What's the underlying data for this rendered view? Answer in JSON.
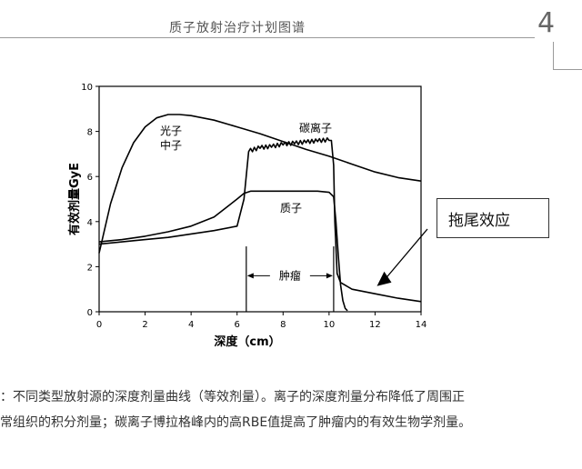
{
  "header": {
    "title": "质子放射治疗计划图谱",
    "page_number": "4"
  },
  "annotation_box": {
    "label": "拖尾效应"
  },
  "caption": {
    "line1": "：不同类型放射源的深度剂量曲线（等效剂量）。离子的深度剂量分布降低了周围正",
    "line2": "常组织的积分剂量；碳离子博拉格峰内的高RBE值提高了肿瘤内的有效生物学剂量。"
  },
  "chart_data": {
    "type": "line",
    "title": "",
    "xlabel": "深度（cm）",
    "ylabel": "有效剂量GyE",
    "xlim": [
      0,
      14
    ],
    "ylim": [
      0,
      10
    ],
    "xticks": [
      "0",
      "2",
      "4",
      "6",
      "8",
      "10",
      "12",
      "14"
    ],
    "yticks": [
      "0",
      "2",
      "4",
      "6",
      "8",
      "10"
    ],
    "grid": false,
    "series": [
      {
        "name": "光子\n中子",
        "label_lines": [
          "光子",
          "中子"
        ],
        "x": [
          0,
          0.5,
          1,
          1.5,
          2,
          2.5,
          3,
          3.5,
          4,
          5,
          6,
          7,
          8,
          9,
          10,
          11,
          12,
          13,
          14
        ],
        "y": [
          2.6,
          4.8,
          6.4,
          7.5,
          8.2,
          8.6,
          8.75,
          8.75,
          8.7,
          8.5,
          8.2,
          7.9,
          7.55,
          7.2,
          6.9,
          6.55,
          6.2,
          5.95,
          5.8
        ]
      },
      {
        "name": "碳离子",
        "label_lines": [
          "碳离子"
        ],
        "x": [
          0,
          1,
          2,
          3,
          4,
          5,
          6,
          6.3,
          6.5,
          7,
          7.5,
          8,
          8.5,
          9,
          9.5,
          10,
          10.1,
          10.2,
          10.25,
          10.35,
          10.5,
          11,
          12,
          13,
          14
        ],
        "y": [
          3.0,
          3.1,
          3.2,
          3.3,
          3.45,
          3.6,
          3.8,
          5.0,
          7.1,
          7.25,
          7.3,
          7.4,
          7.45,
          7.5,
          7.55,
          7.6,
          7.6,
          6.5,
          4.0,
          1.7,
          1.3,
          1.0,
          0.8,
          0.6,
          0.45
        ]
      },
      {
        "name": "质子",
        "label_lines": [
          "质子"
        ],
        "x": [
          0,
          1,
          2,
          3,
          4,
          5,
          5.5,
          6,
          6.3,
          6.6,
          7,
          8,
          9,
          9.5,
          10,
          10.2,
          10.3,
          10.4,
          10.5,
          10.6,
          10.7,
          10.8
        ],
        "y": [
          3.1,
          3.2,
          3.35,
          3.55,
          3.8,
          4.2,
          4.6,
          5.0,
          5.25,
          5.35,
          5.35,
          5.35,
          5.35,
          5.35,
          5.3,
          5.1,
          4.0,
          2.5,
          1.2,
          0.5,
          0.15,
          0.05
        ]
      }
    ],
    "annotations": [
      {
        "text": "肿瘤",
        "x_start": 6.4,
        "x_end": 10.2,
        "y": 1.6
      },
      {
        "text": "拖尾效应",
        "arrow_to_x": 12.2,
        "arrow_to_y": 1.3
      }
    ]
  }
}
